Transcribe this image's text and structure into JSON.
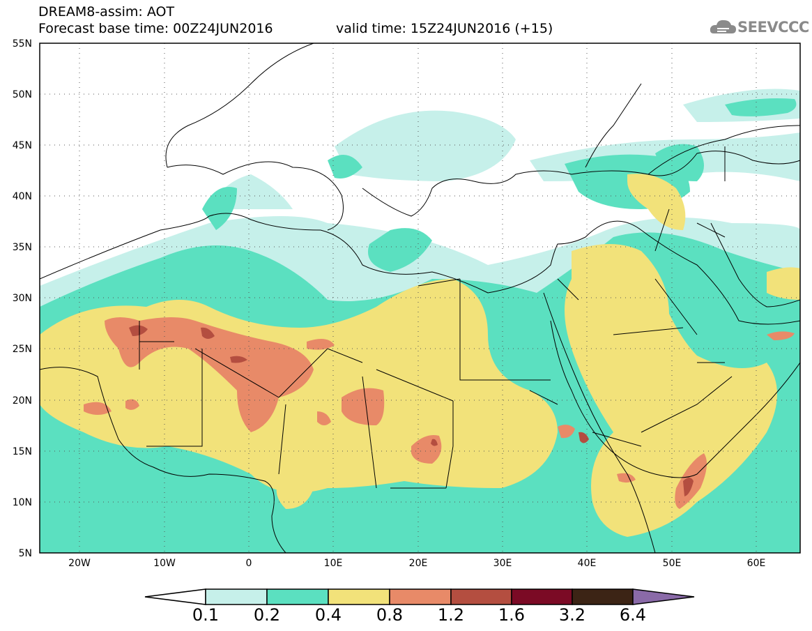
{
  "header": {
    "line1": "DREAM8-assim: AOT",
    "base_time": "Forecast base time: 00Z24JUN2016",
    "valid_time": "valid time: 15Z24JUN2016 (+15)"
  },
  "logo": {
    "text": "SEEVCCC",
    "icon": "cloud-icon"
  },
  "axes": {
    "lat_labels": [
      "55N",
      "50N",
      "45N",
      "40N",
      "35N",
      "30N",
      "25N",
      "20N",
      "15N",
      "10N",
      "5N"
    ],
    "lon_labels": [
      "20W",
      "10W",
      "0",
      "10E",
      "20E",
      "30E",
      "40E",
      "50E",
      "60E"
    ]
  },
  "colorbar": {
    "levels": [
      "0.1",
      "0.2",
      "0.4",
      "0.8",
      "1.2",
      "1.6",
      "3.2",
      "6.4"
    ],
    "colors": [
      "#ffffff",
      "#c6f0ea",
      "#5be0c0",
      "#f2e27a",
      "#e88a68",
      "#b44e40",
      "#7b0a25",
      "#3c2415",
      "#8a6aa8"
    ]
  },
  "colors": {
    "c1": "#c6f0ea",
    "c2": "#5be0c0",
    "c3": "#f2e27a",
    "c4": "#e88a68",
    "c5": "#b44e40"
  }
}
